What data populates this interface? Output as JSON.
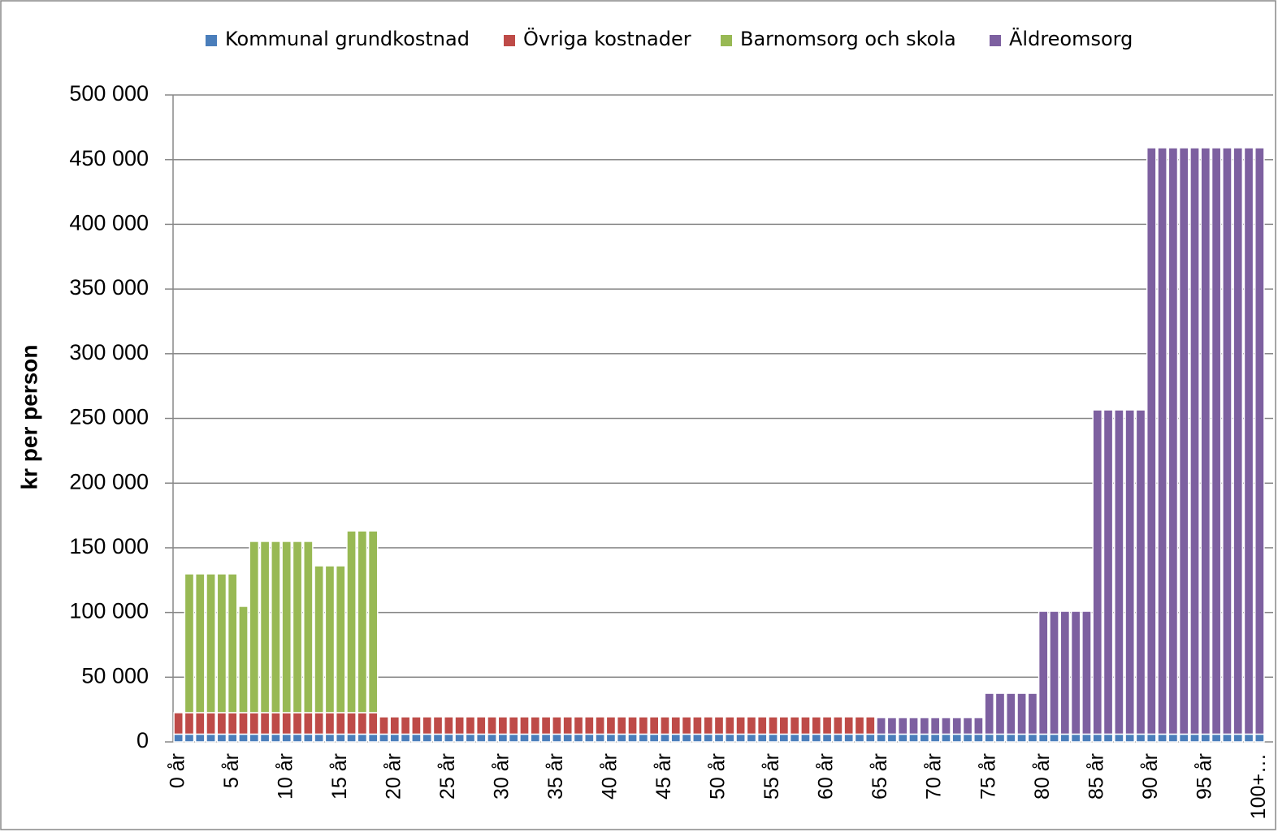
{
  "chart_data": {
    "type": "stacked_bar",
    "y_label": "kr per person",
    "categories": [
      "0 år",
      null,
      null,
      null,
      null,
      "5 år",
      null,
      null,
      null,
      null,
      "10 år",
      null,
      null,
      null,
      null,
      "15 år",
      null,
      null,
      null,
      null,
      "20 år",
      null,
      null,
      null,
      null,
      "25 år",
      null,
      null,
      null,
      null,
      "30 år",
      null,
      null,
      null,
      null,
      "35 år",
      null,
      null,
      null,
      null,
      "40 år",
      null,
      null,
      null,
      null,
      "45 år",
      null,
      null,
      null,
      null,
      "50 år",
      null,
      null,
      null,
      null,
      "55 år",
      null,
      null,
      null,
      null,
      "60 år",
      null,
      null,
      null,
      null,
      "65 år",
      null,
      null,
      null,
      null,
      "70 år",
      null,
      null,
      null,
      null,
      "75 år",
      null,
      null,
      null,
      null,
      "80 år",
      null,
      null,
      null,
      null,
      "85 år",
      null,
      null,
      null,
      null,
      "90 år",
      null,
      null,
      null,
      null,
      "95 år",
      null,
      null,
      null,
      null,
      "100+…"
    ],
    "series": [
      {
        "name": "Kommunal grundkostnad",
        "color": "#4a7ebb",
        "values": [
          6000,
          6000,
          6000,
          6000,
          6000,
          6000,
          6000,
          6000,
          6000,
          6000,
          6000,
          6000,
          6000,
          6000,
          6000,
          6000,
          6000,
          6000,
          6000,
          6000,
          6000,
          6000,
          6000,
          6000,
          6000,
          6000,
          6000,
          6000,
          6000,
          6000,
          6000,
          6000,
          6000,
          6000,
          6000,
          6000,
          6000,
          6000,
          6000,
          6000,
          6000,
          6000,
          6000,
          6000,
          6000,
          6000,
          6000,
          6000,
          6000,
          6000,
          6000,
          6000,
          6000,
          6000,
          6000,
          6000,
          6000,
          6000,
          6000,
          6000,
          6000,
          6000,
          6000,
          6000,
          6000,
          6000,
          6000,
          6000,
          6000,
          6000,
          6000,
          6000,
          6000,
          6000,
          6000,
          6000,
          6000,
          6000,
          6000,
          6000,
          6000,
          6000,
          6000,
          6000,
          6000,
          6000,
          6000,
          6000,
          6000,
          6000,
          6000,
          6000,
          6000,
          6000,
          6000,
          6000,
          6000,
          6000,
          6000,
          6000,
          6000
        ]
      },
      {
        "name": "Övriga kostnader",
        "color": "#be4b48",
        "values": [
          16600,
          16600,
          16600,
          16600,
          16600,
          16600,
          16600,
          16600,
          16600,
          16600,
          16600,
          16600,
          16600,
          16600,
          16600,
          16600,
          16600,
          16600,
          16600,
          13400,
          13400,
          13400,
          13400,
          13400,
          13400,
          13400,
          13400,
          13400,
          13400,
          13400,
          13400,
          13400,
          13400,
          13400,
          13400,
          13400,
          13400,
          13400,
          13400,
          13400,
          13400,
          13400,
          13400,
          13400,
          13400,
          13400,
          13400,
          13400,
          13400,
          13400,
          13400,
          13400,
          13400,
          13400,
          13400,
          13400,
          13400,
          13400,
          13400,
          13400,
          13400,
          13400,
          13400,
          13400,
          13400,
          0,
          0,
          0,
          0,
          0,
          0,
          0,
          0,
          0,
          0,
          0,
          0,
          0,
          0,
          0,
          0,
          0,
          0,
          0,
          0,
          0,
          0,
          0,
          0,
          0,
          0,
          0,
          0,
          0,
          0,
          0,
          0,
          0,
          0,
          0,
          0
        ]
      },
      {
        "name": "Barnomsorg och skola",
        "color": "#98b954",
        "values": [
          0,
          107300,
          107300,
          107300,
          107300,
          107300,
          82200,
          132400,
          132400,
          132400,
          132400,
          132400,
          132400,
          113500,
          113500,
          113500,
          140500,
          140500,
          140500,
          0,
          0,
          0,
          0,
          0,
          0,
          0,
          0,
          0,
          0,
          0,
          0,
          0,
          0,
          0,
          0,
          0,
          0,
          0,
          0,
          0,
          0,
          0,
          0,
          0,
          0,
          0,
          0,
          0,
          0,
          0,
          0,
          0,
          0,
          0,
          0,
          0,
          0,
          0,
          0,
          0,
          0,
          0,
          0,
          0,
          0,
          0,
          0,
          0,
          0,
          0,
          0,
          0,
          0,
          0,
          0,
          0,
          0,
          0,
          0,
          0,
          0,
          0,
          0,
          0,
          0,
          0,
          0,
          0,
          0,
          0,
          0,
          0,
          0,
          0,
          0,
          0,
          0,
          0,
          0,
          0,
          0
        ]
      },
      {
        "name": "Äldreomsorg",
        "color": "#7d60a0",
        "values": [
          0,
          0,
          0,
          0,
          0,
          0,
          0,
          0,
          0,
          0,
          0,
          0,
          0,
          0,
          0,
          0,
          0,
          0,
          0,
          0,
          0,
          0,
          0,
          0,
          0,
          0,
          0,
          0,
          0,
          0,
          0,
          0,
          0,
          0,
          0,
          0,
          0,
          0,
          0,
          0,
          0,
          0,
          0,
          0,
          0,
          0,
          0,
          0,
          0,
          0,
          0,
          0,
          0,
          0,
          0,
          0,
          0,
          0,
          0,
          0,
          0,
          0,
          0,
          0,
          0,
          12800,
          12800,
          12800,
          12800,
          12800,
          12800,
          12800,
          12800,
          12800,
          12800,
          31600,
          31600,
          31600,
          31600,
          31600,
          95000,
          95000,
          95000,
          95000,
          95000,
          250600,
          250600,
          250600,
          250600,
          250600,
          453200,
          453200,
          453200,
          453200,
          453200,
          453200,
          453200,
          453200,
          453200,
          453200,
          453200
        ]
      }
    ],
    "ylim": [
      0,
      500000
    ],
    "yticks": [
      0,
      {
        "value": 50000,
        "label": "50 000"
      },
      {
        "value": 100000,
        "label": "100 000"
      },
      {
        "value": 150000,
        "label": "150 000"
      },
      {
        "value": 200000,
        "label": "200 000"
      },
      {
        "value": 250000,
        "label": "250 000"
      },
      {
        "value": 300000,
        "label": "300 000"
      },
      {
        "value": 350000,
        "label": "350 000"
      },
      {
        "value": 400000,
        "label": "400 000"
      },
      {
        "value": 450000,
        "label": "450 000"
      },
      {
        "value": 500000,
        "label": "500 000"
      }
    ],
    "grid": true,
    "legend": "top"
  }
}
